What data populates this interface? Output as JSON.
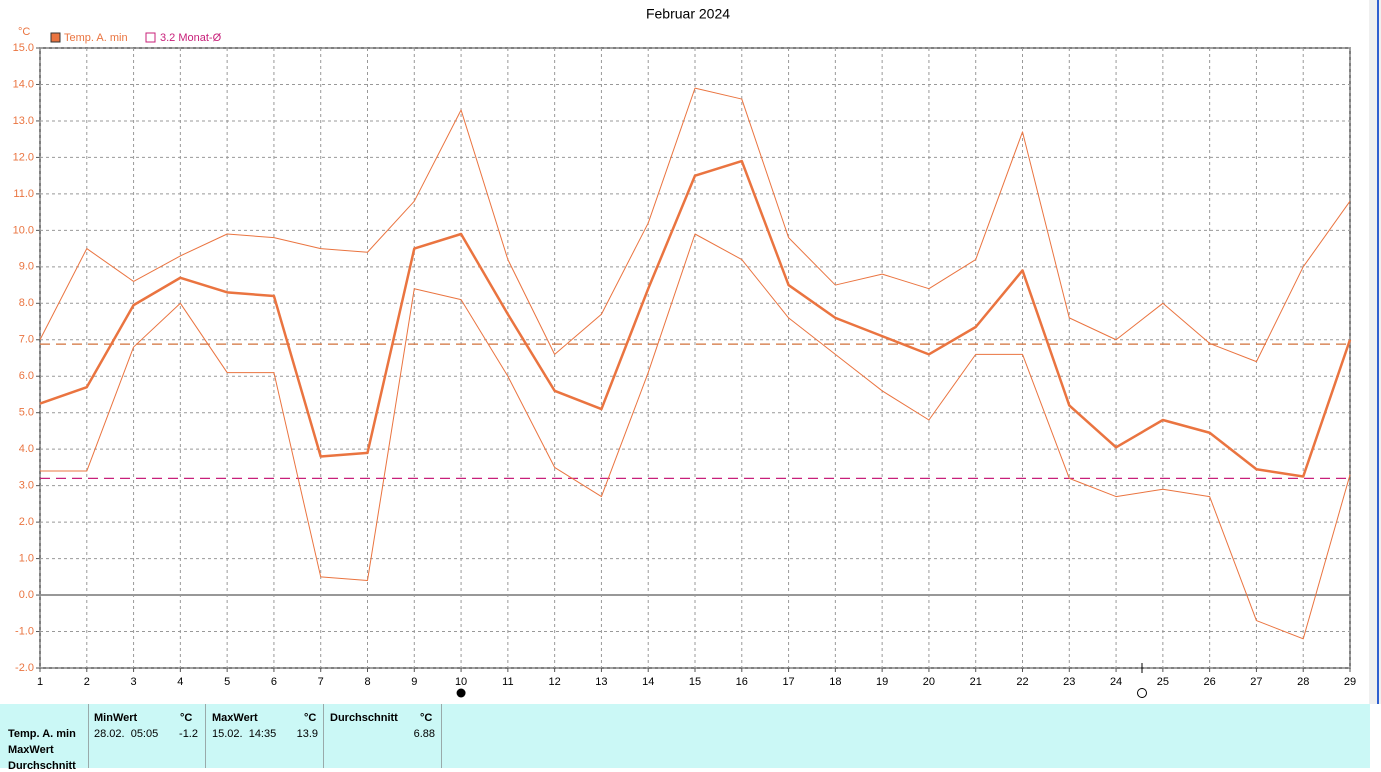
{
  "chart_data": {
    "type": "line",
    "title": "Februar 2024",
    "y_unit": "°C",
    "x": [
      1,
      2,
      3,
      4,
      5,
      6,
      7,
      8,
      9,
      10,
      11,
      12,
      13,
      14,
      15,
      16,
      17,
      18,
      19,
      20,
      21,
      22,
      23,
      24,
      25,
      26,
      27,
      28,
      29
    ],
    "xlim": [
      1,
      29
    ],
    "xticks": [
      1,
      2,
      3,
      4,
      5,
      6,
      7,
      8,
      9,
      10,
      11,
      12,
      13,
      14,
      15,
      16,
      17,
      18,
      19,
      20,
      21,
      22,
      23,
      24,
      25,
      26,
      27,
      28,
      29
    ],
    "ylim": [
      -2,
      15
    ],
    "yticks": [
      {
        "value": -2,
        "label": "-2.0"
      },
      {
        "value": -1,
        "label": "-1.0"
      },
      {
        "value": 0,
        "label": "0.0"
      },
      {
        "value": 1,
        "label": "1.0"
      },
      {
        "value": 2,
        "label": "2.0"
      },
      {
        "value": 3,
        "label": "3.0"
      },
      {
        "value": 4,
        "label": "4.0"
      },
      {
        "value": 5,
        "label": "5.0"
      },
      {
        "value": 6,
        "label": "6.0"
      },
      {
        "value": 7,
        "label": "7.0"
      },
      {
        "value": 8,
        "label": "8.0"
      },
      {
        "value": 9,
        "label": "9.0"
      },
      {
        "value": 10,
        "label": "10.0"
      },
      {
        "value": 11,
        "label": "11.0"
      },
      {
        "value": 12,
        "label": "12.0"
      },
      {
        "value": 13,
        "label": "13.0"
      },
      {
        "value": 14,
        "label": "14.0"
      },
      {
        "value": 15,
        "label": "15.0"
      }
    ],
    "grid": true,
    "series": [
      {
        "name": "Temp. A. min",
        "color": "#ea7440",
        "width": 2.5,
        "values": [
          5.25,
          5.7,
          7.95,
          8.7,
          8.3,
          8.2,
          3.8,
          3.9,
          9.5,
          9.9,
          7.7,
          5.6,
          5.1,
          8.4,
          11.5,
          11.9,
          8.5,
          7.6,
          7.1,
          6.6,
          7.35,
          8.9,
          5.2,
          4.05,
          4.8,
          4.45,
          3.45,
          3.25,
          7.0
        ]
      },
      {
        "color": "#ea7440",
        "width": 1,
        "values": [
          7.0,
          9.5,
          8.6,
          9.3,
          9.9,
          9.8,
          9.5,
          9.4,
          10.8,
          13.3,
          9.2,
          6.6,
          7.7,
          10.2,
          13.9,
          13.6,
          9.8,
          8.5,
          8.8,
          8.4,
          9.2,
          12.7,
          7.6,
          7.0,
          8.0,
          6.9,
          6.4,
          9.0,
          10.8
        ]
      },
      {
        "color": "#ea7440",
        "width": 1,
        "values": [
          3.4,
          3.4,
          6.8,
          8.0,
          6.1,
          6.1,
          0.5,
          0.4,
          8.4,
          8.1,
          6.0,
          3.5,
          2.7,
          6.1,
          9.9,
          9.2,
          7.6,
          6.6,
          5.6,
          4.8,
          6.6,
          6.6,
          3.2,
          2.7,
          2.9,
          2.7,
          -0.7,
          -1.2,
          3.3
        ]
      }
    ],
    "reference_lines": [
      {
        "value": 6.88,
        "color": "#d2703a"
      },
      {
        "value": 3.2,
        "label": "3.2 Monat-Ø",
        "color": "#c8207a"
      }
    ]
  },
  "table": {
    "headers": [
      "MinWert",
      "°C",
      "MaxWert",
      "°C",
      "Durchschnitt",
      "°C"
    ],
    "row_labels": [
      "Temp. A. min",
      "MaxWert",
      "Durchschnitt"
    ],
    "rows": [
      {
        "min_time": "28.02.  05:05",
        "min": -1.2,
        "max_time": "15.02.  14:35",
        "max": 13.9,
        "avg": 6.88
      }
    ]
  }
}
